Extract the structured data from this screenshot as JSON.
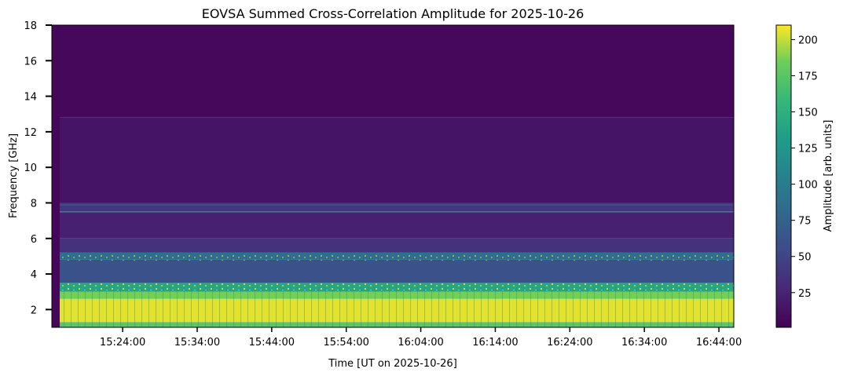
{
  "chart_data": {
    "type": "heatmap",
    "title": "EOVSA Summed Cross-Correlation Amplitude for 2025-10-26",
    "xlabel": "Time [UT on 2025-10-26]",
    "ylabel": "Frequency [GHz]",
    "x_range": [
      "15:14:30",
      "16:46:00"
    ],
    "ylim": [
      1.0,
      18.0
    ],
    "x_ticks": [
      "15:24:00",
      "15:34:00",
      "15:44:00",
      "15:54:00",
      "16:04:00",
      "16:14:00",
      "16:24:00",
      "16:34:00",
      "16:44:00"
    ],
    "y_ticks": [
      2,
      4,
      6,
      8,
      10,
      12,
      14,
      16,
      18
    ],
    "colorbar": {
      "label": "Amplitude [arb. units]",
      "range": [
        1,
        210
      ],
      "ticks": [
        25,
        50,
        75,
        100,
        125,
        150,
        175,
        200
      ],
      "colormap": "viridis"
    },
    "frequency_bands": [
      {
        "from": 1.0,
        "to": 1.3,
        "amplitude": 175
      },
      {
        "from": 1.3,
        "to": 2.6,
        "amplitude": 205
      },
      {
        "from": 2.6,
        "to": 3.0,
        "amplitude": 185
      },
      {
        "from": 3.0,
        "to": 3.5,
        "amplitude": 140
      },
      {
        "from": 3.5,
        "to": 4.8,
        "amplitude": 60
      },
      {
        "from": 4.8,
        "to": 5.2,
        "amplitude": 85
      },
      {
        "from": 5.2,
        "to": 6.0,
        "amplitude": 35
      },
      {
        "from": 6.0,
        "to": 7.5,
        "amplitude": 22
      },
      {
        "from": 7.5,
        "to": 8.0,
        "amplitude": 38
      },
      {
        "from": 8.0,
        "to": 12.8,
        "amplitude": 14
      },
      {
        "from": 12.8,
        "to": 18.0,
        "amplitude": 6
      }
    ],
    "colors": {
      "viridis_low": "#440154",
      "viridis_mid": "#21918c",
      "viridis_high": "#fde725"
    }
  }
}
